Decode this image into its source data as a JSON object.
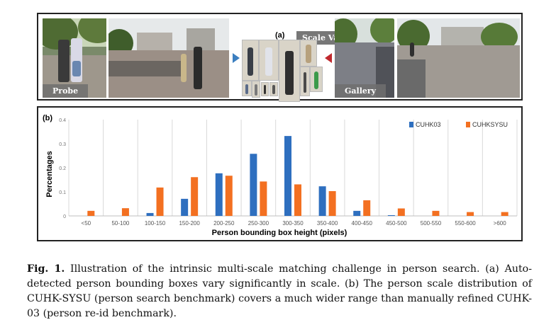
{
  "panel_a": {
    "label": "(a)",
    "scale_variance_label": "Scale Variance",
    "probe_label": "Probe",
    "gallery_label": "Gallery"
  },
  "chart_data": {
    "type": "bar",
    "panel_label": "(b)",
    "categories": [
      "<50",
      "50-100",
      "100-150",
      "150-200",
      "200-250",
      "250-300",
      "300-350",
      "350-400",
      "400-450",
      "450-500",
      "500-550",
      "550-600",
      ">600"
    ],
    "series": [
      {
        "name": "CUHK03",
        "color": "#2e6fbf",
        "values": [
          0,
          0,
          0.012,
          0.071,
          0.177,
          0.258,
          0.332,
          0.123,
          0.021,
          0.003,
          0,
          0,
          0
        ]
      },
      {
        "name": "CUHKSYSU",
        "color": "#f37021",
        "values": [
          0.021,
          0.032,
          0.118,
          0.161,
          0.167,
          0.143,
          0.131,
          0.103,
          0.065,
          0.031,
          0.021,
          0.016,
          0.016
        ]
      }
    ],
    "xlabel": "Person bounding box height (pixels)",
    "ylabel": "Percentages",
    "ylim": [
      0,
      0.4
    ],
    "yticks": [
      0,
      0.1,
      0.2,
      0.3,
      0.4
    ],
    "ytick_labels": [
      "0",
      "0.1",
      "0.2",
      "0.3",
      "0.4"
    ],
    "grid": true,
    "legend_position": "top-right"
  },
  "caption": {
    "fig_label": "Fig. 1.",
    "text": " Illustration of the intrinsic multi-scale matching challenge in person search. (a) Auto-detected person bounding boxes vary significantly in scale. (b) The person scale distribution of CUHK-SYSU (person search benchmark) covers a much wider range than manually refined CUHK-03 (person re-id benchmark)."
  }
}
